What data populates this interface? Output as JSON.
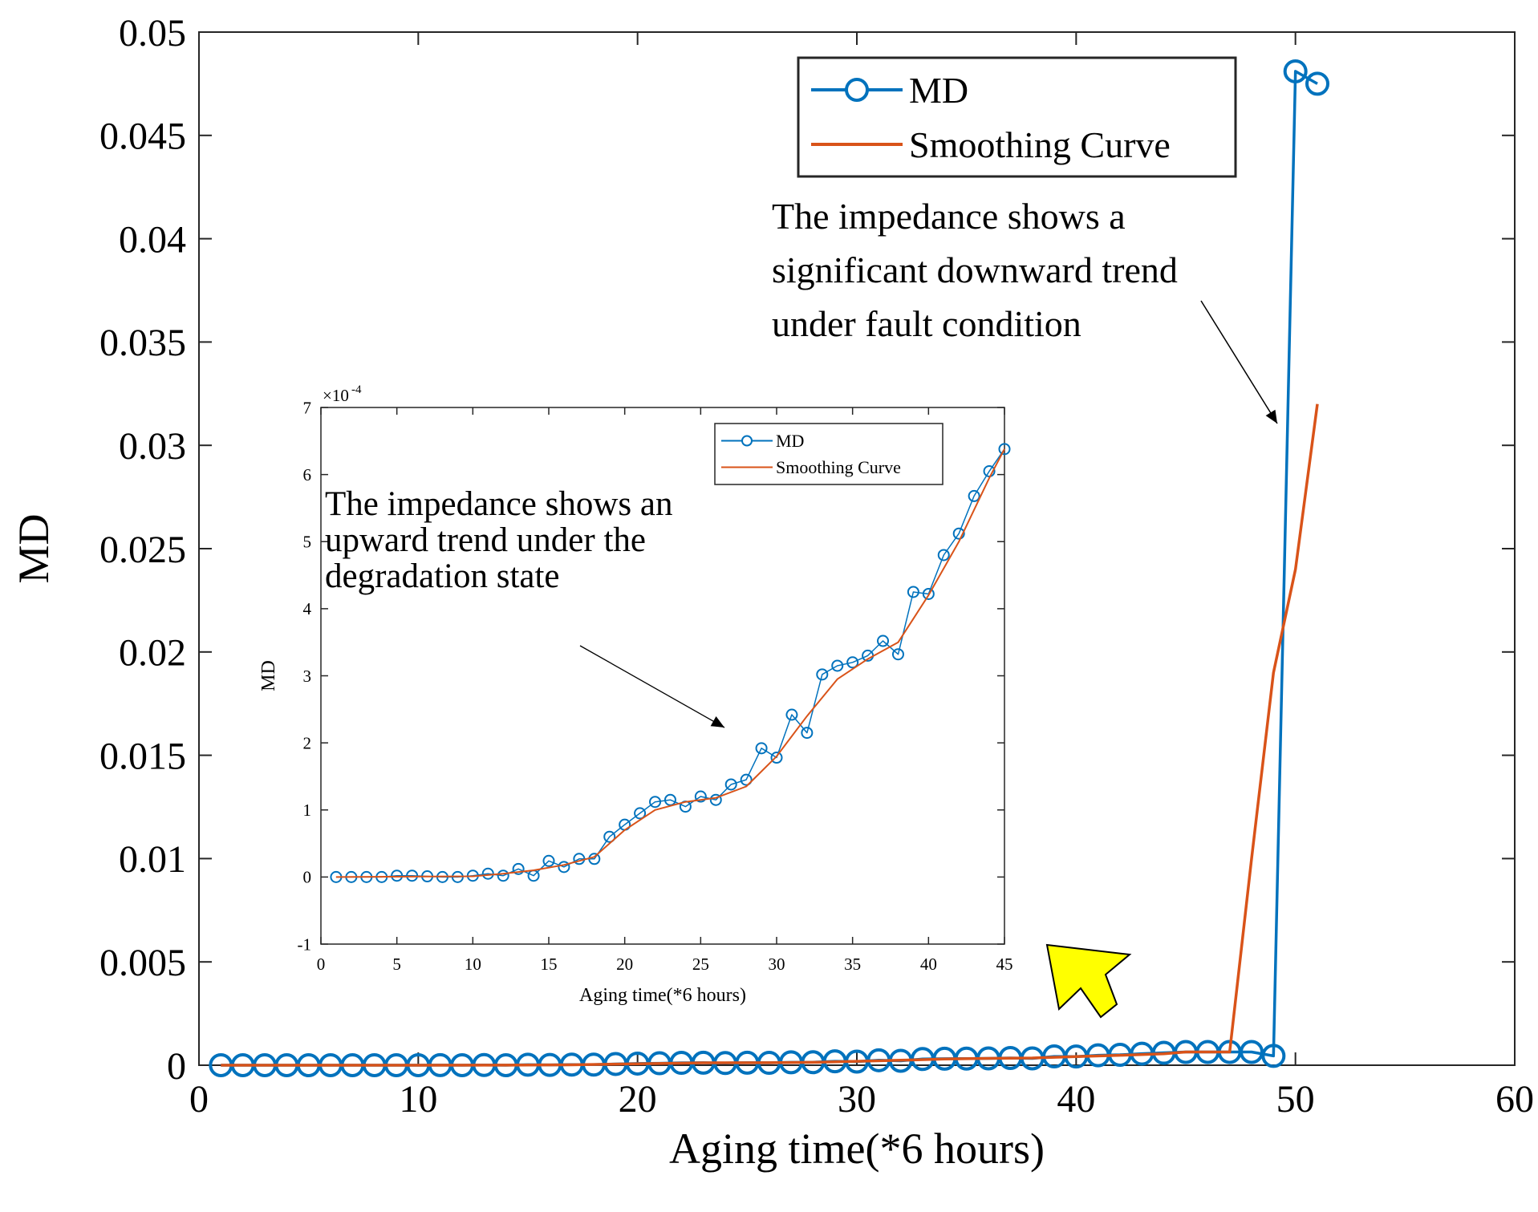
{
  "chart_data": [
    {
      "type": "line",
      "xlabel": "Aging time(*6 hours)",
      "ylabel": "MD",
      "xlim": [
        0,
        60
      ],
      "ylim": [
        0,
        0.05
      ],
      "xticks": [
        0,
        10,
        20,
        30,
        40,
        50,
        60
      ],
      "xtick_labels": [
        "0",
        "10",
        "20",
        "30",
        "40",
        "50",
        "60"
      ],
      "yticks": [
        0,
        0.005,
        0.01,
        0.015,
        0.02,
        0.025,
        0.03,
        0.035,
        0.04,
        0.045,
        0.05
      ],
      "ytick_labels": [
        "0",
        "0.005",
        "0.01",
        "0.015",
        "0.02",
        "0.025",
        "0.03",
        "0.035",
        "0.04",
        "0.045",
        "0.05"
      ],
      "legend_position": "top-right",
      "x": [
        1,
        2,
        3,
        4,
        5,
        6,
        7,
        8,
        9,
        10,
        11,
        12,
        13,
        14,
        15,
        16,
        17,
        18,
        19,
        20,
        21,
        22,
        23,
        24,
        25,
        26,
        27,
        28,
        29,
        30,
        31,
        32,
        33,
        34,
        35,
        36,
        37,
        38,
        39,
        40,
        41,
        42,
        43,
        44,
        45,
        46,
        47,
        48,
        49,
        50,
        51
      ],
      "series": [
        {
          "name": "MD",
          "marker": "circle",
          "color": "#0072BD",
          "values": [
            0,
            0,
            0,
            0,
            0,
            0,
            0,
            0,
            0,
            0,
            5e-06,
            0,
            1e-05,
            0,
            2.5e-05,
            1.5e-05,
            3e-05,
            3e-05,
            6e-05,
            8e-05,
            9.5e-05,
            0.000115,
            0.00012,
            0.000105,
            0.00012,
            0.000115,
            0.00014,
            0.000145,
            0.00019,
            0.000175,
            0.00024,
            0.000215,
            0.0003,
            0.000315,
            0.00032,
            0.00033,
            0.00035,
            0.00033,
            0.000425,
            0.00042,
            0.00048,
            0.000505,
            0.00056,
            0.0006,
            0.00064,
            0.00064,
            0.00064,
            0.00064,
            0.00045,
            0.0481,
            0.0475
          ]
        },
        {
          "name": "Smoothing Curve",
          "color": "#D95319",
          "x": [
            1,
            10,
            14,
            17,
            20,
            23,
            26,
            28,
            30,
            32,
            34,
            36,
            38,
            40,
            42,
            44,
            45,
            46,
            47,
            48,
            49,
            50,
            51
          ],
          "values": [
            0,
            0,
            5e-06,
            2e-05,
            7e-05,
            0.000115,
            0.00012,
            0.00014,
            0.00019,
            0.00024,
            0.0003,
            0.00033,
            0.00035,
            0.00042,
            0.00048,
            0.00055,
            0.00064,
            0.00064,
            0.00064,
            0.01,
            0.019,
            0.024,
            0.032
          ]
        }
      ],
      "annotations": [
        {
          "text_lines": [
            "The impedance shows a",
            "significant downward trend",
            "under fault condition"
          ],
          "arrow_to": [
            49,
            0.031
          ]
        }
      ]
    },
    {
      "type": "line",
      "role": "inset",
      "xlabel": "Aging time(*6 hours)",
      "ylabel": "MD",
      "exponent_label": "×10",
      "exponent_power": "-4",
      "xlim": [
        0,
        45
      ],
      "ylim": [
        -1,
        7
      ],
      "xticks": [
        0,
        5,
        10,
        15,
        20,
        25,
        30,
        35,
        40,
        45
      ],
      "xtick_labels": [
        "0",
        "5",
        "10",
        "15",
        "20",
        "25",
        "30",
        "35",
        "40",
        "45"
      ],
      "yticks": [
        -1,
        0,
        1,
        2,
        3,
        4,
        5,
        6,
        7
      ],
      "ytick_labels": [
        "-1",
        "0",
        "1",
        "2",
        "3",
        "4",
        "5",
        "6",
        "7"
      ],
      "legend_position": "top-right",
      "x": [
        1,
        2,
        3,
        4,
        5,
        6,
        7,
        8,
        9,
        10,
        11,
        12,
        13,
        14,
        15,
        16,
        17,
        18,
        19,
        20,
        21,
        22,
        23,
        24,
        25,
        26,
        27,
        28,
        29,
        30,
        31,
        32,
        33,
        34,
        35,
        36,
        37,
        38,
        39,
        40,
        41,
        42,
        43,
        44,
        45
      ],
      "series": [
        {
          "name": "MD",
          "marker": "circle",
          "color": "#0072BD",
          "values": [
            0,
            0,
            0,
            0,
            0.02,
            0.02,
            0.01,
            0,
            0,
            0.02,
            0.05,
            0.02,
            0.12,
            0.02,
            0.24,
            0.15,
            0.27,
            0.27,
            0.6,
            0.78,
            0.95,
            1.12,
            1.15,
            1.05,
            1.2,
            1.15,
            1.38,
            1.45,
            1.92,
            1.78,
            2.42,
            2.15,
            3.02,
            3.15,
            3.2,
            3.3,
            3.52,
            3.32,
            4.25,
            4.22,
            4.8,
            5.12,
            5.68,
            6.05,
            6.38
          ]
        },
        {
          "name": "Smoothing Curve",
          "color": "#D95319",
          "x": [
            1,
            10,
            12,
            14,
            16,
            18,
            20,
            22,
            24,
            26,
            28,
            30,
            32,
            34,
            36,
            38,
            40,
            42,
            44,
            45
          ],
          "values": [
            0,
            0.01,
            0.05,
            0.1,
            0.18,
            0.3,
            0.7,
            1.0,
            1.12,
            1.18,
            1.35,
            1.8,
            2.4,
            2.95,
            3.25,
            3.5,
            4.2,
            5.0,
            5.95,
            6.38
          ]
        }
      ],
      "annotations": [
        {
          "text_lines": [
            "The impedance shows an",
            "upward trend under the",
            "degradation state"
          ],
          "arrow_to": [
            27,
            2.25
          ]
        }
      ]
    }
  ],
  "highlight_arrow": {
    "color": "#FFFF00",
    "direction": "up-left",
    "points_to": "inset"
  }
}
